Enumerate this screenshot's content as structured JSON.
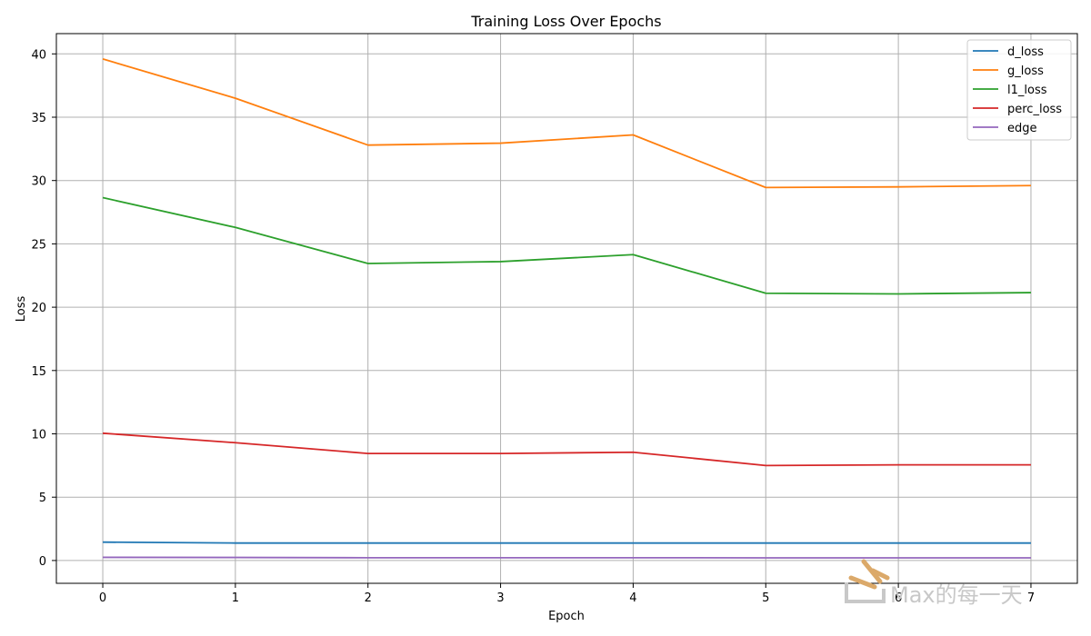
{
  "chart_data": {
    "type": "line",
    "title": "Training Loss Over Epochs",
    "xlabel": "Epoch",
    "ylabel": "Loss",
    "x": [
      0,
      1,
      2,
      3,
      4,
      5,
      6,
      7
    ],
    "xlim": [
      -0.35,
      7.35
    ],
    "ylim": [
      -1.8,
      41.6
    ],
    "xticks": [
      "0",
      "1",
      "2",
      "3",
      "4",
      "5",
      "6",
      "7"
    ],
    "yticks": [
      "0",
      "5",
      "10",
      "15",
      "20",
      "25",
      "30",
      "35",
      "40"
    ],
    "grid": true,
    "legend_position": "top-right",
    "series": [
      {
        "name": "d_loss",
        "color": "#1f77b4",
        "values": [
          1.45,
          1.38,
          1.38,
          1.38,
          1.38,
          1.38,
          1.38,
          1.38
        ]
      },
      {
        "name": "g_loss",
        "color": "#ff7f0e",
        "values": [
          39.6,
          36.5,
          32.8,
          32.95,
          33.6,
          29.45,
          29.5,
          29.6
        ]
      },
      {
        "name": "l1_loss",
        "color": "#2ca02c",
        "values": [
          28.65,
          26.3,
          23.45,
          23.6,
          24.15,
          21.1,
          21.05,
          21.15
        ]
      },
      {
        "name": "perc_loss",
        "color": "#d62728",
        "values": [
          10.05,
          9.3,
          8.45,
          8.45,
          8.55,
          7.5,
          7.55,
          7.55
        ]
      },
      {
        "name": "edge",
        "color": "#9467bd",
        "values": [
          0.25,
          0.24,
          0.22,
          0.22,
          0.22,
          0.21,
          0.21,
          0.21
        ]
      }
    ]
  },
  "watermark": {
    "text": "Max的每一天",
    "color": "#c8c8c8",
    "accent": "#dba96a"
  }
}
